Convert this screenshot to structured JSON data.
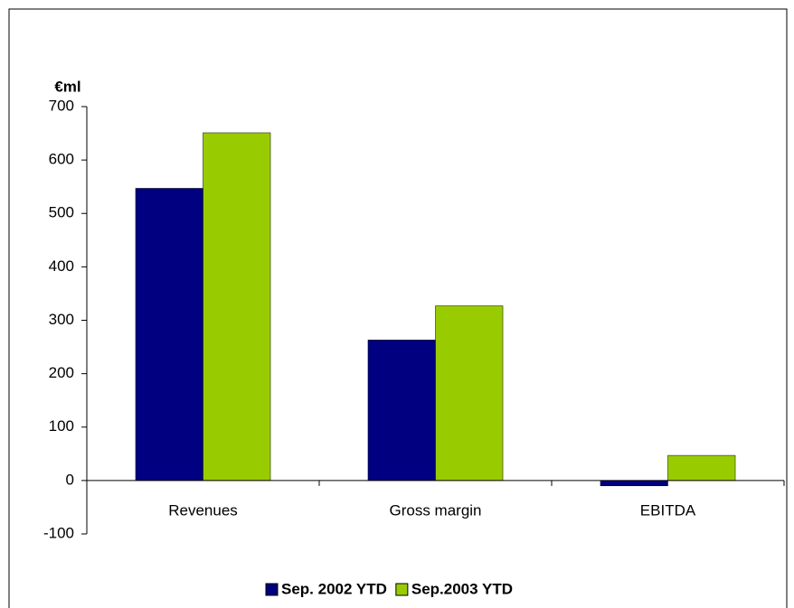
{
  "chart_data": {
    "type": "bar",
    "y_label": "€ml",
    "categories": [
      "Revenues",
      "Gross margin",
      "EBITDA"
    ],
    "series": [
      {
        "name": "Sep. 2002 YTD",
        "color": "#000080",
        "values": [
          547,
          263,
          -10
        ]
      },
      {
        "name": "Sep.2003 YTD",
        "color": "#99cc00",
        "values": [
          651,
          327,
          47
        ]
      }
    ],
    "ylim": [
      -100,
      700
    ],
    "yticks": [
      -100,
      0,
      100,
      200,
      300,
      400,
      500,
      600,
      700
    ],
    "legend": "bottom"
  }
}
